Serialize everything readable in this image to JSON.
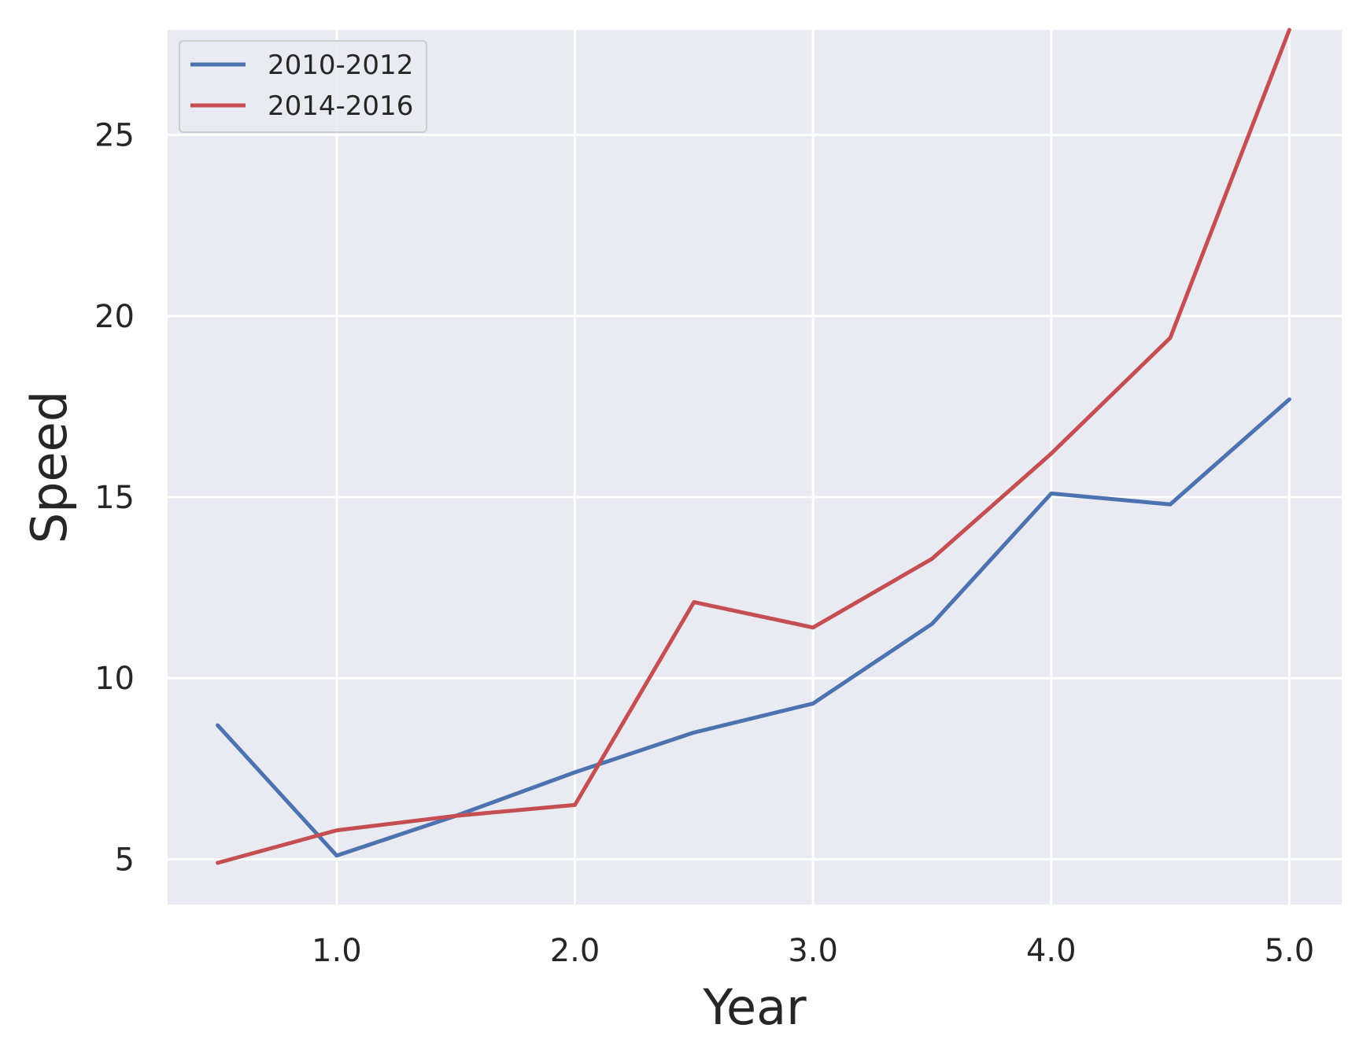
{
  "chart_data": {
    "type": "line",
    "title": "",
    "xlabel": "Year",
    "ylabel": "Speed",
    "xlim": [
      0.29,
      5.22
    ],
    "ylim": [
      3.75,
      27.9
    ],
    "xticks": [
      1.0,
      2.0,
      3.0,
      4.0,
      5.0
    ],
    "xtick_labels": [
      "1.0",
      "2.0",
      "3.0",
      "4.0",
      "5.0"
    ],
    "yticks": [
      5,
      10,
      15,
      20,
      25
    ],
    "ytick_labels": [
      "5",
      "10",
      "15",
      "20",
      "25"
    ],
    "grid": true,
    "legend_position": "upper-left",
    "x": [
      0.5,
      1.0,
      1.5,
      2.0,
      2.5,
      3.0,
      3.5,
      4.0,
      4.5,
      5.0
    ],
    "series": [
      {
        "name": "2010-2012",
        "color": "#4c72b0",
        "values": [
          8.7,
          5.1,
          6.2,
          7.4,
          8.5,
          9.3,
          11.5,
          15.1,
          14.8,
          17.7
        ]
      },
      {
        "name": "2014-2016",
        "color": "#c44e52",
        "values": [
          4.9,
          5.8,
          6.2,
          6.5,
          12.1,
          11.4,
          13.3,
          16.2,
          19.4,
          27.9
        ]
      }
    ]
  }
}
